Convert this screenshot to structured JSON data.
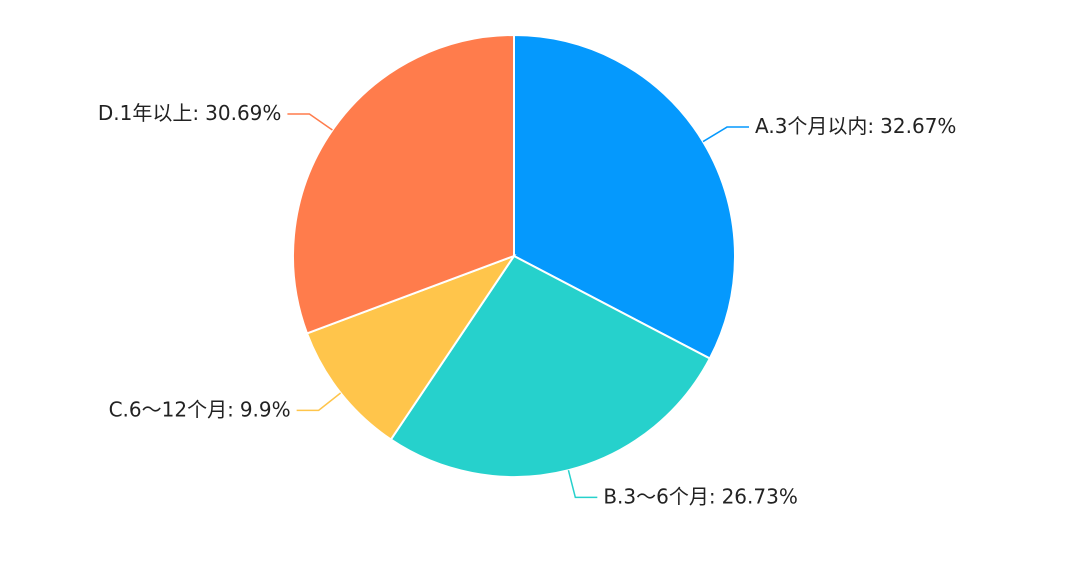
{
  "chart_data": {
    "type": "pie",
    "categories": [
      "A.3个月以内:",
      "B.3～6个月:",
      "C.6～12个月:",
      "D.1年以上:"
    ],
    "values": [
      32.67,
      26.73,
      9.9,
      30.69
    ],
    "value_labels": [
      "32.67%",
      "26.73%",
      "9.9%",
      "30.69%"
    ],
    "colors": [
      "#0599fd",
      "#26d1cc",
      "#ffc54b",
      "#ff7c4c"
    ]
  }
}
